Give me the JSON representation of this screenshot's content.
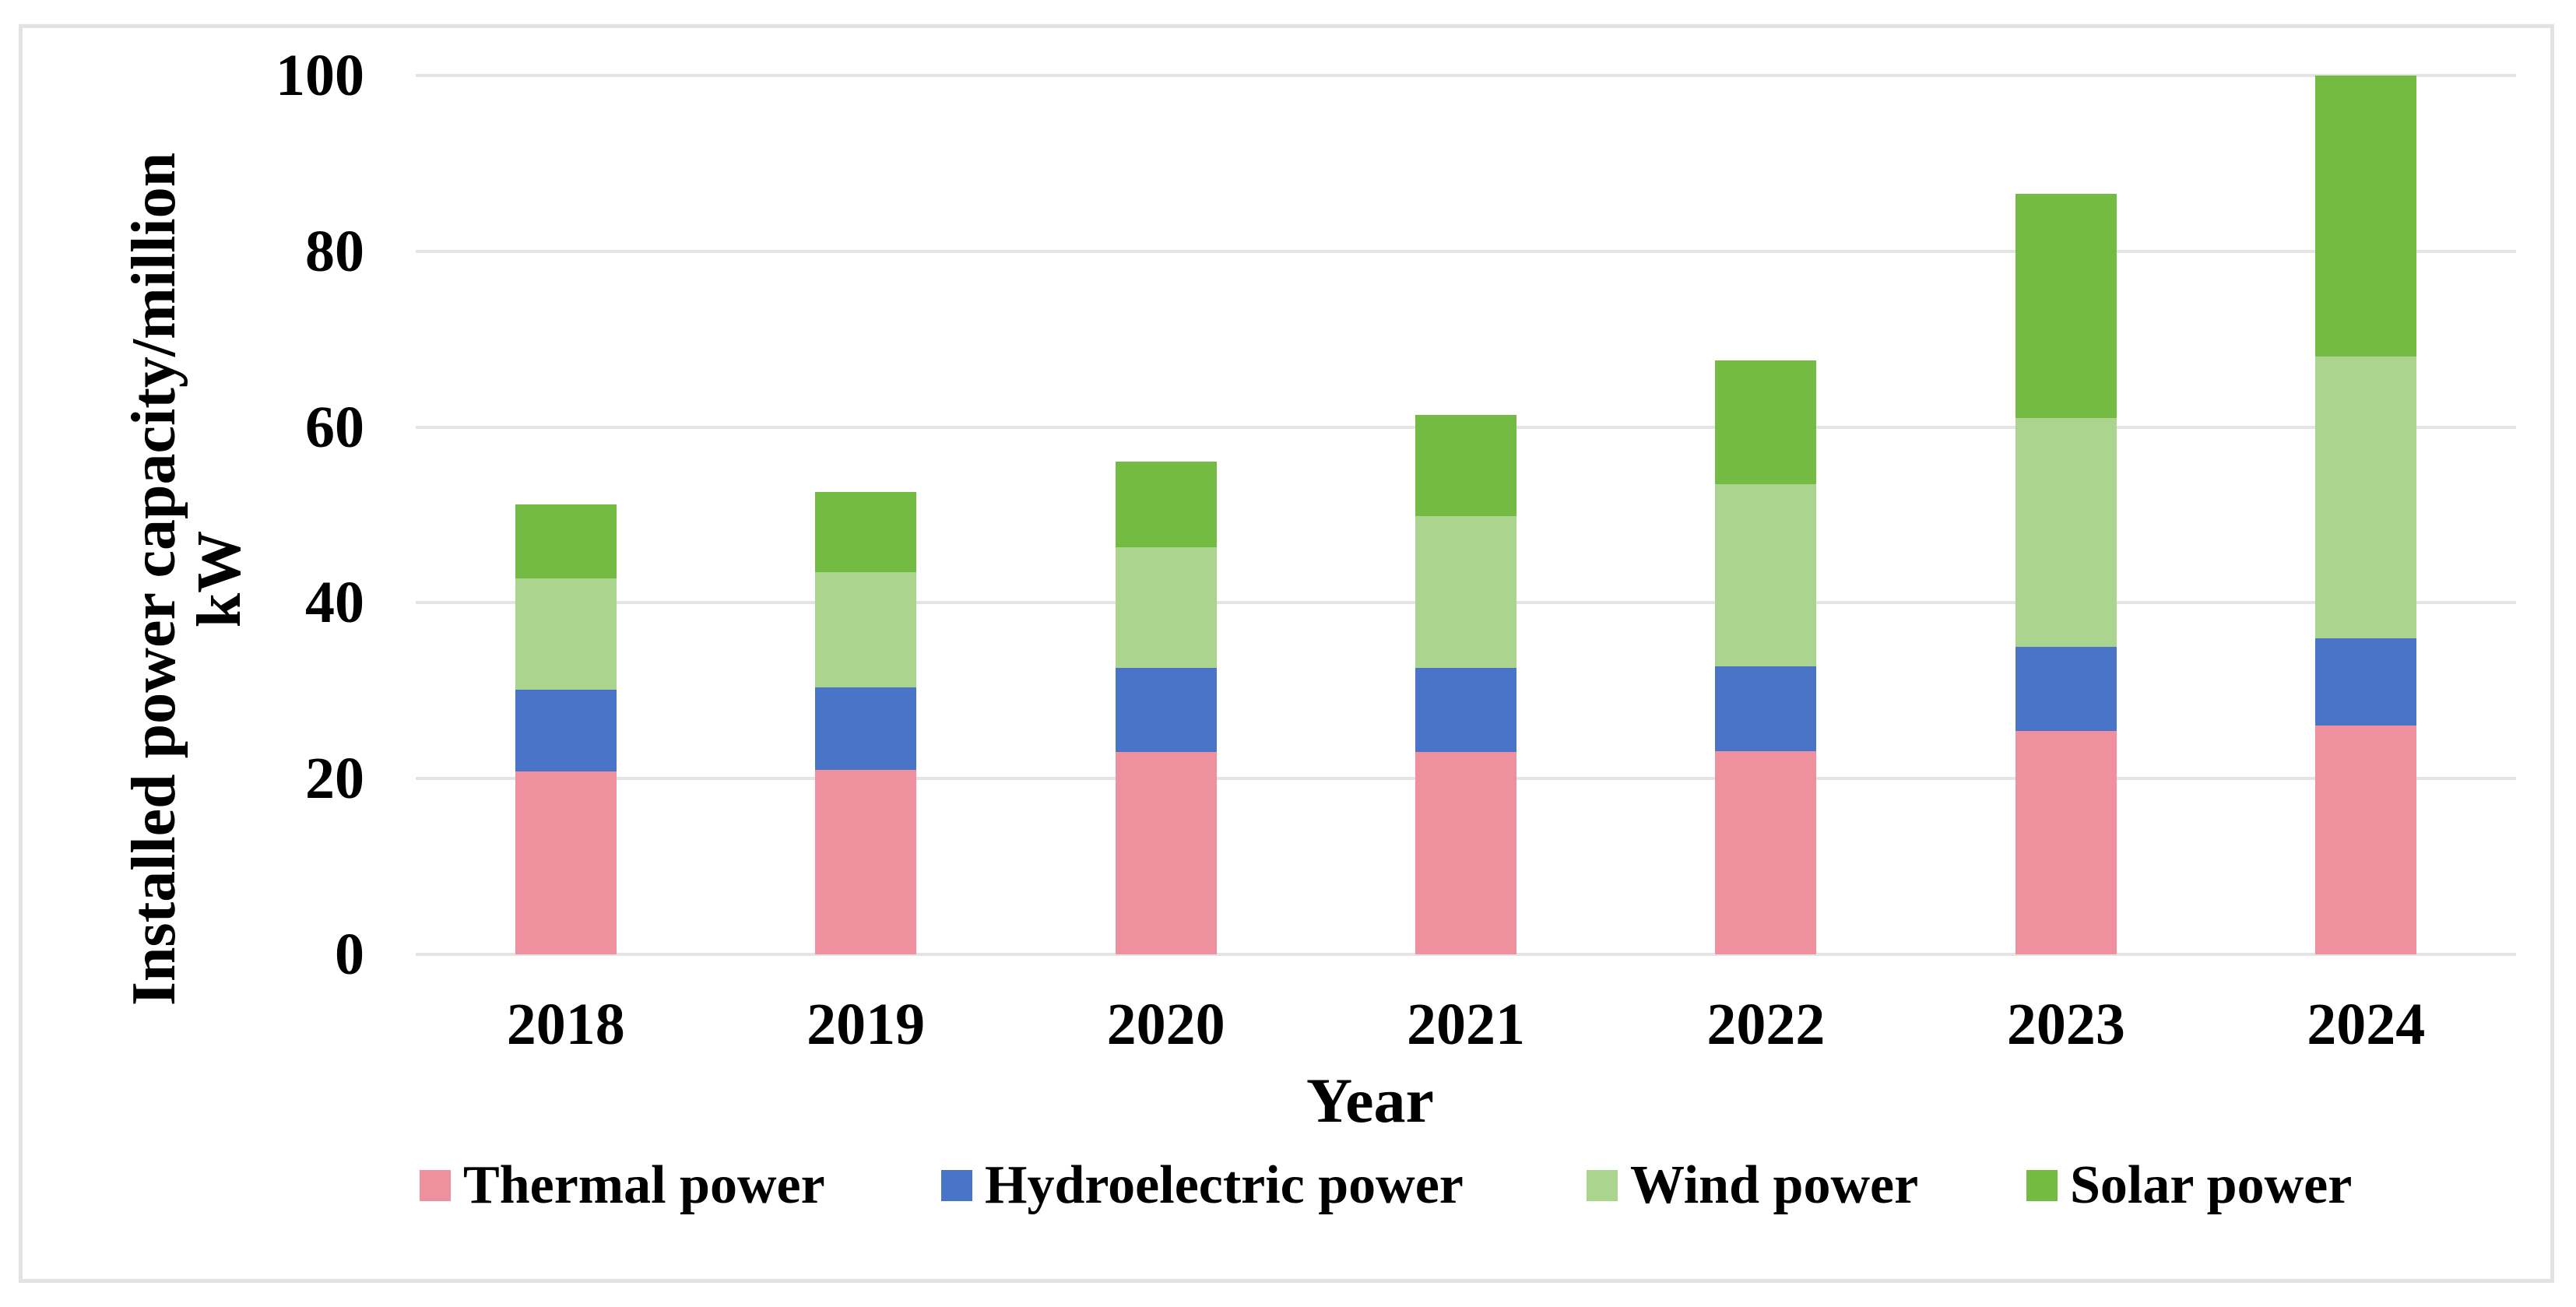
{
  "figure": {
    "background": "#ffffff",
    "border_color": "#e2e2e2",
    "gridline_color": "#e4e4e4"
  },
  "chart_data": {
    "type": "bar",
    "stacked": true,
    "title": "",
    "xlabel": "Year",
    "ylabel": "Installed power capacity/million kW",
    "ylabel_line1": "Installed power capacity/million",
    "ylabel_line2": "kW",
    "categories": [
      "2018",
      "2019",
      "2020",
      "2021",
      "2022",
      "2023",
      "2024"
    ],
    "series": [
      {
        "name": "Thermal power",
        "color": "#ee909d",
        "values": [
          20.8,
          21.0,
          23.0,
          23.0,
          23.1,
          25.4,
          26.0
        ]
      },
      {
        "name": "Hydroelectric power",
        "color": "#4a74c8",
        "values": [
          9.3,
          9.4,
          9.6,
          9.6,
          9.7,
          9.6,
          10.0
        ]
      },
      {
        "name": "Wind power",
        "color": "#abd58f",
        "values": [
          12.7,
          13.1,
          13.7,
          17.3,
          20.7,
          26.0,
          32.0
        ]
      },
      {
        "name": "Solar power",
        "color": "#73bb42",
        "values": [
          8.4,
          9.1,
          9.8,
          11.5,
          14.1,
          25.5,
          32.0
        ]
      }
    ],
    "totals": [
      51.2,
      52.6,
      56.1,
      61.4,
      67.6,
      86.5,
      100.0
    ],
    "ylim": [
      0,
      100
    ],
    "yticks": [
      "0",
      "20",
      "40",
      "60",
      "80",
      "100"
    ],
    "grid": true,
    "legend_position": "bottom"
  }
}
